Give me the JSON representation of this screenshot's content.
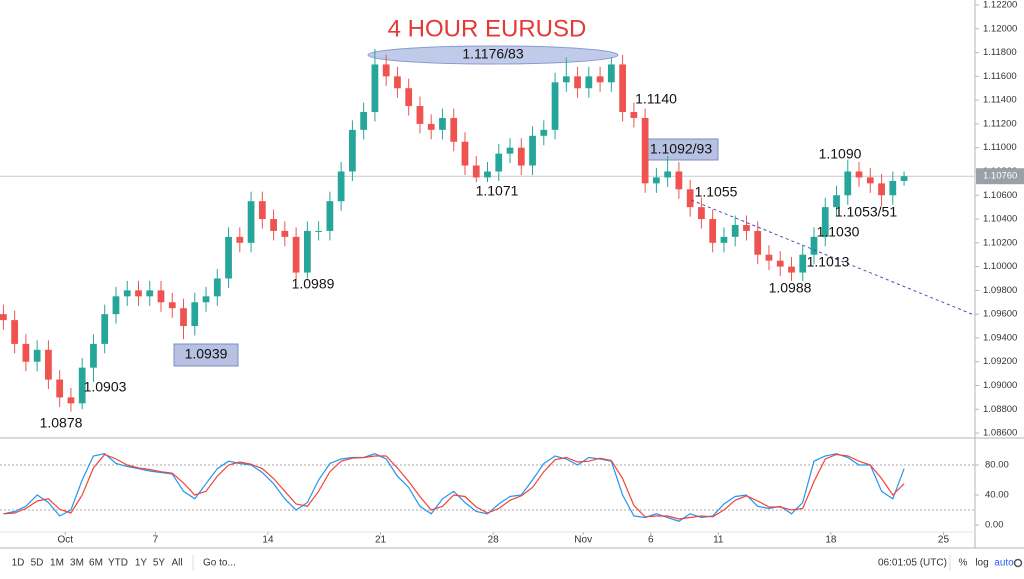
{
  "chart_data": {
    "type": "candlestick",
    "title": "4 HOUR EURUSD",
    "x": [
      -2.75,
      -2.25,
      -1.75,
      -1.25,
      -0.75,
      -0.25,
      0.25,
      0.75,
      1.25,
      1.75,
      2.25,
      2.75,
      3.25,
      3.75,
      4.25,
      4.75,
      5.25,
      5.75,
      6.25,
      6.75,
      7.25,
      7.75,
      8.25,
      8.75,
      9.25,
      9.75,
      10.25,
      10.75,
      11.25,
      11.75,
      12.25,
      12.75,
      13.25,
      13.75,
      14.25,
      14.75,
      15.25,
      15.75,
      16.25,
      16.75,
      17.25,
      17.75,
      18.25,
      18.75,
      19.25,
      19.75,
      20.25,
      20.75,
      21.25,
      21.75,
      22.25,
      22.75,
      23.25,
      23.75,
      24.25,
      24.75,
      25.25,
      25.75,
      26.25,
      26.75,
      27.25,
      27.75,
      28.25,
      28.75,
      29.25,
      29.75,
      30.25,
      30.75,
      31.25,
      31.75,
      32.25,
      32.75,
      33.25,
      33.75,
      34.25,
      34.75,
      35.25,
      35.75,
      36.25,
      36.75,
      37.25
    ],
    "open": [
      1.096,
      1.0955,
      1.0935,
      1.092,
      1.093,
      1.0905,
      1.089,
      1.0885,
      1.0915,
      1.0935,
      1.096,
      1.0975,
      1.098,
      1.0975,
      1.098,
      1.097,
      1.0965,
      1.095,
      1.097,
      1.0975,
      1.099,
      1.1025,
      1.102,
      1.1055,
      1.104,
      1.103,
      1.1025,
      1.0995,
      1.103,
      1.103,
      1.1055,
      1.108,
      1.1115,
      1.113,
      1.117,
      1.116,
      1.115,
      1.1135,
      1.112,
      1.1115,
      1.1125,
      1.1105,
      1.1085,
      1.1075,
      1.108,
      1.1095,
      1.11,
      1.1085,
      1.111,
      1.1115,
      1.1155,
      1.116,
      1.115,
      1.116,
      1.1155,
      1.117,
      1.113,
      1.1125,
      1.107,
      1.1075,
      1.108,
      1.1065,
      1.105,
      1.104,
      1.102,
      1.1025,
      1.1035,
      1.103,
      1.101,
      1.1005,
      1.1,
      1.0995,
      1.101,
      1.1025,
      1.105,
      1.106,
      1.108,
      1.1075,
      1.107,
      1.106,
      1.1072
    ],
    "high": [
      1.0968,
      1.0963,
      1.0943,
      1.0938,
      1.0938,
      1.0913,
      1.0898,
      1.0923,
      1.0943,
      1.0968,
      1.0983,
      1.0988,
      1.0988,
      1.0988,
      1.0988,
      1.0978,
      1.0973,
      1.0978,
      1.0983,
      1.0998,
      1.1033,
      1.1033,
      1.1063,
      1.1063,
      1.1048,
      1.1038,
      1.1033,
      1.1038,
      1.1038,
      1.1063,
      1.1088,
      1.1123,
      1.1138,
      1.1183,
      1.1178,
      1.1168,
      1.1158,
      1.1143,
      1.1128,
      1.1133,
      1.1133,
      1.1113,
      1.1093,
      1.1088,
      1.1103,
      1.1108,
      1.1108,
      1.1118,
      1.1123,
      1.1163,
      1.1176,
      1.1168,
      1.1168,
      1.1168,
      1.1176,
      1.1178,
      1.1138,
      1.1133,
      1.1083,
      1.1093,
      1.1088,
      1.1073,
      1.1058,
      1.1048,
      1.1033,
      1.1043,
      1.1043,
      1.1038,
      1.1018,
      1.1013,
      1.1008,
      1.1018,
      1.1033,
      1.1058,
      1.1068,
      1.109,
      1.1088,
      1.1083,
      1.1078,
      1.108,
      1.108
    ],
    "low": [
      1.0947,
      1.0927,
      1.0912,
      1.0912,
      1.0897,
      1.0882,
      1.0878,
      1.088,
      1.0903,
      1.0927,
      1.0952,
      1.0967,
      1.0967,
      1.0967,
      1.0962,
      1.0957,
      1.0939,
      1.0942,
      1.0962,
      1.0967,
      1.0982,
      1.1012,
      1.1012,
      1.1032,
      1.1022,
      1.1017,
      1.0989,
      1.099,
      1.1022,
      1.1022,
      1.1047,
      1.1072,
      1.1107,
      1.1122,
      1.1152,
      1.1142,
      1.1127,
      1.1112,
      1.1107,
      1.1107,
      1.1097,
      1.1077,
      1.1071,
      1.1071,
      1.1072,
      1.1087,
      1.1077,
      1.1077,
      1.1102,
      1.1107,
      1.1147,
      1.1142,
      1.1142,
      1.1147,
      1.1147,
      1.1122,
      1.1117,
      1.1062,
      1.1062,
      1.1067,
      1.1057,
      1.1042,
      1.1032,
      1.1012,
      1.1012,
      1.1017,
      1.1022,
      1.1002,
      1.0997,
      1.0992,
      1.0988,
      1.0988,
      1.1002,
      1.1017,
      1.1042,
      1.1052,
      1.1067,
      1.1062,
      1.1051,
      1.1052,
      1.1068
    ],
    "close": [
      1.0955,
      1.0935,
      1.092,
      1.093,
      1.0905,
      1.089,
      1.0885,
      1.0915,
      1.0935,
      1.096,
      1.0975,
      1.098,
      1.0975,
      1.098,
      1.097,
      1.0965,
      1.095,
      1.097,
      1.0975,
      1.099,
      1.1025,
      1.102,
      1.1055,
      1.104,
      1.103,
      1.1025,
      1.0995,
      1.103,
      1.103,
      1.1055,
      1.108,
      1.1115,
      1.113,
      1.117,
      1.116,
      1.115,
      1.1135,
      1.112,
      1.1115,
      1.1125,
      1.1105,
      1.1085,
      1.1075,
      1.108,
      1.1095,
      1.11,
      1.1085,
      1.111,
      1.1115,
      1.1155,
      1.116,
      1.115,
      1.116,
      1.1155,
      1.117,
      1.113,
      1.1125,
      1.107,
      1.1075,
      1.108,
      1.1065,
      1.105,
      1.104,
      1.102,
      1.1025,
      1.1035,
      1.103,
      1.101,
      1.1005,
      1.1,
      1.0995,
      1.101,
      1.1025,
      1.105,
      1.106,
      1.108,
      1.1075,
      1.107,
      1.106,
      1.1072,
      1.1076
    ],
    "up_color": "#26a69a",
    "down_color": "#ef5350",
    "xlim": [
      -2.9,
      40.4
    ],
    "xticks": [
      {
        "value": 0,
        "label": "Oct"
      },
      {
        "value": 4,
        "label": "7"
      },
      {
        "value": 9,
        "label": "14"
      },
      {
        "value": 14,
        "label": "21"
      },
      {
        "value": 19,
        "label": "28"
      },
      {
        "value": 23,
        "label": "Nov"
      },
      {
        "value": 26,
        "label": "6"
      },
      {
        "value": 29,
        "label": "11"
      },
      {
        "value": 34,
        "label": "18"
      },
      {
        "value": 39,
        "label": "25"
      }
    ],
    "ylim": [
      1.08567,
      1.12242
    ],
    "yticks": [
      {
        "value": 1.086,
        "label": "1.08600"
      },
      {
        "value": 1.088,
        "label": "1.08800"
      },
      {
        "value": 1.09,
        "label": "1.09000"
      },
      {
        "value": 1.092,
        "label": "1.09200"
      },
      {
        "value": 1.094,
        "label": "1.09400"
      },
      {
        "value": 1.096,
        "label": "1.09600"
      },
      {
        "value": 1.098,
        "label": "1.09800"
      },
      {
        "value": 1.1,
        "label": "1.10000"
      },
      {
        "value": 1.102,
        "label": "1.10200"
      },
      {
        "value": 1.104,
        "label": "1.10400"
      },
      {
        "value": 1.106,
        "label": "1.10600"
      },
      {
        "value": 1.108,
        "label": "1.10800"
      },
      {
        "value": 1.11,
        "label": "1.11000"
      },
      {
        "value": 1.112,
        "label": "1.11200"
      },
      {
        "value": 1.114,
        "label": "1.11400"
      },
      {
        "value": 1.116,
        "label": "1.11600"
      },
      {
        "value": 1.118,
        "label": "1.11800"
      },
      {
        "value": 1.12,
        "label": "1.12000"
      },
      {
        "value": 1.122,
        "label": "1.12200"
      }
    ],
    "grid": false,
    "last_price": {
      "value": 1.1076,
      "label": "1.10760"
    },
    "trendline": {
      "x": [
        27.8,
        40.4
      ],
      "y": [
        1.1056,
        1.0959
      ],
      "color": "#3f51b5"
    },
    "annotations": [
      "1.1176/83",
      "1.1140",
      "1.1092/93",
      "1.1055",
      "1.1090",
      "1.1053/51",
      "1.1030",
      "1.1013",
      "1.0988",
      "1.1071",
      "1.0989",
      "1.0939",
      "1.0903",
      "1.0878"
    ],
    "oscillator": {
      "ylim": [
        -9.3,
        113.3
      ],
      "yticks": [
        {
          "value": 0,
          "label": "0.00"
        },
        {
          "value": 40,
          "label": "40.00"
        },
        {
          "value": 80,
          "label": "80.00"
        }
      ],
      "bands": [
        20,
        80
      ],
      "series": [
        {
          "color": "#2196f3",
          "values": [
            15,
            18,
            25,
            40,
            30,
            12,
            20,
            60,
            92,
            95,
            82,
            78,
            75,
            72,
            70,
            68,
            45,
            35,
            55,
            75,
            85,
            82,
            80,
            70,
            55,
            35,
            20,
            30,
            60,
            82,
            88,
            90,
            90,
            95,
            88,
            65,
            50,
            25,
            15,
            35,
            45,
            30,
            18,
            15,
            28,
            38,
            40,
            60,
            82,
            92,
            88,
            80,
            90,
            88,
            85,
            40,
            12,
            10,
            15,
            10,
            5,
            15,
            10,
            12,
            28,
            38,
            40,
            25,
            22,
            25,
            15,
            30,
            85,
            92,
            95,
            90,
            80,
            80,
            45,
            35,
            75
          ]
        },
        {
          "color": "#f44336",
          "values": [
            15,
            16,
            22,
            32,
            35,
            21,
            16,
            40,
            76,
            94,
            88,
            80,
            76,
            74,
            71,
            69,
            56,
            40,
            45,
            65,
            80,
            84,
            81,
            75,
            62,
            45,
            28,
            25,
            45,
            71,
            85,
            89,
            90,
            92,
            92,
            76,
            58,
            38,
            20,
            25,
            40,
            38,
            24,
            16,
            22,
            33,
            39,
            50,
            71,
            87,
            90,
            84,
            85,
            89,
            86,
            62,
            26,
            11,
            12,
            12,
            8,
            10,
            12,
            11,
            20,
            33,
            39,
            32,
            24,
            24,
            20,
            22,
            58,
            88,
            94,
            92,
            85,
            80,
            62,
            40,
            55
          ]
        }
      ]
    }
  },
  "toolbar": {
    "ranges": [
      "1D",
      "5D",
      "1M",
      "3M",
      "6M",
      "YTD",
      "1Y",
      "5Y",
      "All"
    ],
    "goto": "Go to...",
    "time": "06:01:05 (UTC)",
    "percent": "%",
    "log": "log",
    "auto": "auto"
  }
}
